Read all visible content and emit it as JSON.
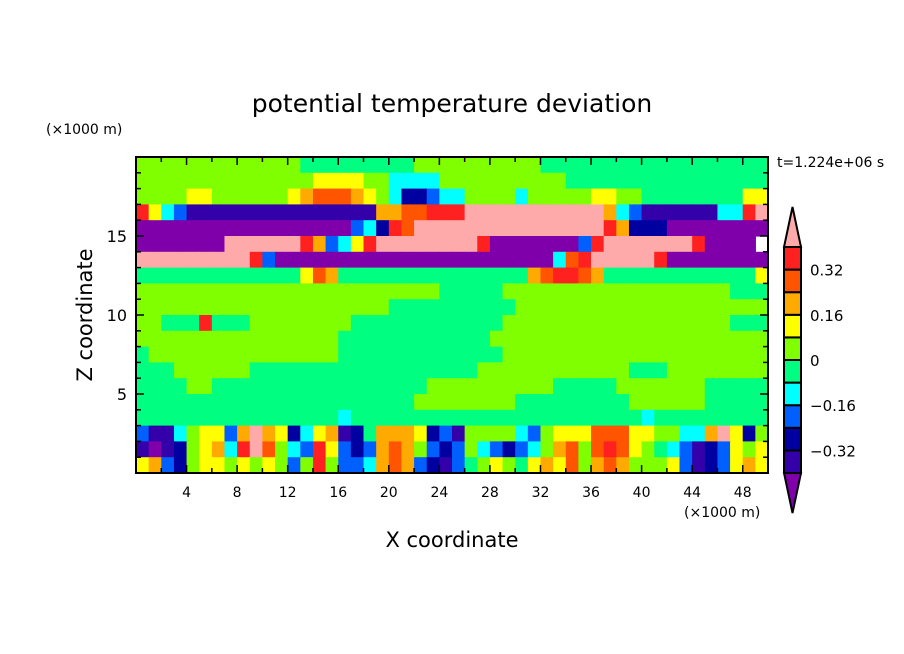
{
  "chart_data": {
    "type": "heatmap",
    "title": "potential temperature deviation",
    "xlabel": "X coordinate",
    "ylabel": "Z coordinate",
    "x_unit": "(×1000 m)",
    "y_unit": "(×1000 m)",
    "time_label": "t=1.224e+06 s",
    "xlim": [
      0,
      50
    ],
    "ylim": [
      0,
      20
    ],
    "x_ticks": [
      4,
      8,
      12,
      16,
      20,
      24,
      28,
      32,
      36,
      40,
      44,
      48
    ],
    "y_ticks": [
      5,
      10,
      15
    ],
    "colorbar": {
      "levels": [
        -0.4,
        -0.32,
        -0.24,
        -0.16,
        -0.08,
        0,
        0.08,
        0.16,
        0.24,
        0.32,
        0.4
      ],
      "tick_labels": [
        {
          "value": 0.32,
          "label": "0.32"
        },
        {
          "value": 0.16,
          "label": "0.16"
        },
        {
          "value": 0,
          "label": "0"
        },
        {
          "value": -0.16,
          "label": "−0.16"
        },
        {
          "value": -0.32,
          "label": "−0.32"
        }
      ],
      "colors": [
        "#7f00aa",
        "#3300aa",
        "#0000a0",
        "#0060ff",
        "#00ffff",
        "#00ff80",
        "#80ff00",
        "#ffff00",
        "#ffaa00",
        "#ff5500",
        "#ff2020",
        "#ffaaaa"
      ],
      "extend": "both"
    },
    "field": {
      "description_of_encoding": "class index per 1 km x 1 km cell, rows from z=19.5 down to z=0.5, columns x=0.5..49.5; index into colorbar.colors",
      "x_centers_start": 0.5,
      "z_centers_start": 19.5,
      "step": 1,
      "rows": [
        "66666666666665555555556666666666555555555555555555",
        "66666666666666777766444466666666665555555555555555",
        "66667766666678999876422344666646666677665555555577",
        "a7431111111111111118899aaabbbbbbbbbbb8431111114 4ab",
        "0000000000000000034 2a9bbbbbbbbbbbbbbba822200000000",
        "0000000bbbbbba8347abbbbbbbba00000003abbbbbbba0000",
        "bbbbbbbbba3000000000000000000000049abbbbba00000000000",
        "555555555555579855555555555555589aa98555555555555 77",
        "66666666666666666666666655555666666666666666666555",
        "66666666666666666666555555555566666666666666666666",
        "66555a5556666666655555555555566666666666666666655 5",
        "66666666666666665555555555556666666666666666666666",
        "56666666666666665555555555555666666666666666666666",
        "55566666655555555555555555566666666666655566666666 6666",
        "55556655555555555555555666666666655555666666655555",
        "55555555555555555555556666666655555555566666655555",
        "55555555555555554555555555555555555555554555555555",
        "311467738b872478125888723166664367779997766448b726",
        "10126784ab9643a732389863236432346896 9a976543123767",
        "78326776767636a63348983213567657879689866673123787"
      ]
    }
  }
}
